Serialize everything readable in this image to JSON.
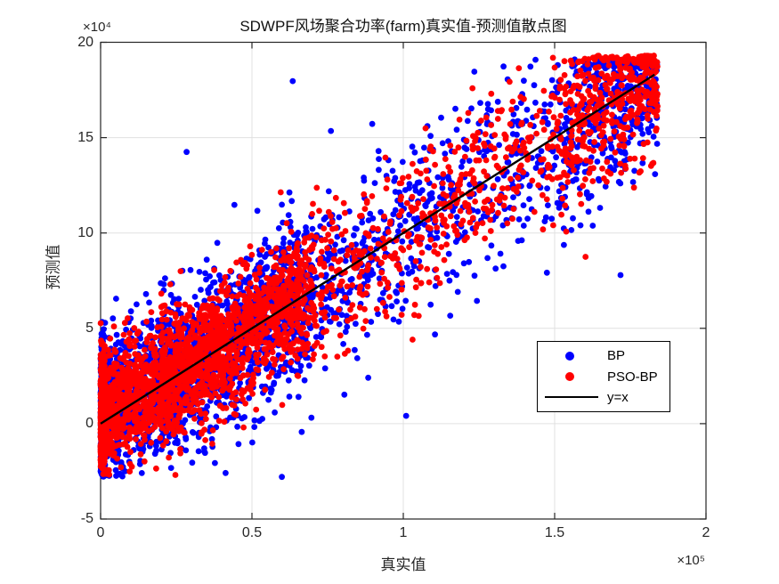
{
  "chart_data": {
    "type": "scatter",
    "title": "SDWPF风场聚合功率(farm)真实值-预测值散点图",
    "xlabel": "真实值",
    "ylabel": "预测值",
    "xlim": [
      0,
      200000
    ],
    "ylim": [
      -50000,
      200000
    ],
    "grid": true,
    "x_axis": {
      "tick_values": [
        0,
        50000,
        100000,
        150000,
        200000
      ],
      "tick_labels": [
        "0",
        "0.5",
        "1",
        "1.5",
        "2"
      ],
      "exponent_label": "×10⁵"
    },
    "y_axis": {
      "tick_values": [
        -50000,
        0,
        50000,
        100000,
        150000,
        200000
      ],
      "tick_labels": [
        "-5",
        "0",
        "5",
        "10",
        "15",
        "20"
      ],
      "exponent_label": "×10⁴"
    },
    "legend": {
      "position": "inner-bottom-right",
      "entries": [
        {
          "label": "BP",
          "marker": "dot",
          "color": "#0000ff"
        },
        {
          "label": "PSO-BP",
          "marker": "dot",
          "color": "#ff0000"
        },
        {
          "label": "y=x",
          "marker": "line",
          "color": "#000000"
        }
      ]
    },
    "series": [
      {
        "name": "BP",
        "color": "#0000ff",
        "marker": "filled-circle",
        "n": 3200,
        "seed": 20230,
        "std_mult": 1.18,
        "bias_mult": 0.7,
        "x_mixture": [
          {
            "weight": 0.11,
            "min": 0,
            "range": 1500,
            "exp": 1.0
          },
          {
            "weight": 0.47,
            "min": 0,
            "range": 70000,
            "exp": 1.6
          },
          {
            "weight": 0.27,
            "min": 20000,
            "range": 120000,
            "exp": 1.3
          },
          {
            "weight": 0.15,
            "min": 136000,
            "range": 48000,
            "exp": 0.55
          }
        ],
        "noise": {
          "base_std": 15000,
          "x_gain": 6000,
          "bias_max": 9000,
          "bias_cutoff": 32000,
          "outlier_prob": 0.006,
          "outlier_scale": 3.0
        },
        "y_clamp": [
          -28000,
          191000
        ]
      },
      {
        "name": "PSO-BP",
        "color": "#ff0000",
        "marker": "filled-circle",
        "n": 3200,
        "seed": 991,
        "std_mult": 0.95,
        "bias_mult": 1.1,
        "x_mixture": [
          {
            "weight": 0.11,
            "min": 0,
            "range": 1500,
            "exp": 1.0
          },
          {
            "weight": 0.47,
            "min": 0,
            "range": 70000,
            "exp": 1.6
          },
          {
            "weight": 0.27,
            "min": 20000,
            "range": 120000,
            "exp": 1.3
          },
          {
            "weight": 0.15,
            "min": 136000,
            "range": 48000,
            "exp": 0.55
          }
        ],
        "noise": {
          "base_std": 15000,
          "x_gain": 6000,
          "bias_max": 9000,
          "bias_cutoff": 32000,
          "outlier_prob": 0.006,
          "outlier_scale": 3.0
        },
        "y_clamp": [
          -27000,
          193000
        ]
      }
    ],
    "reference_line": {
      "label": "y=x",
      "color": "#000000",
      "width": 2.4,
      "x": [
        0,
        183000
      ],
      "y": [
        0,
        183000
      ]
    },
    "style": {
      "marker_radius": 3.4,
      "grid_color": "#e0e0e0",
      "axis_color": "#262626",
      "text_color": "#262626",
      "title_color": "#111111",
      "background": "#ffffff",
      "tick_length": 7
    }
  }
}
